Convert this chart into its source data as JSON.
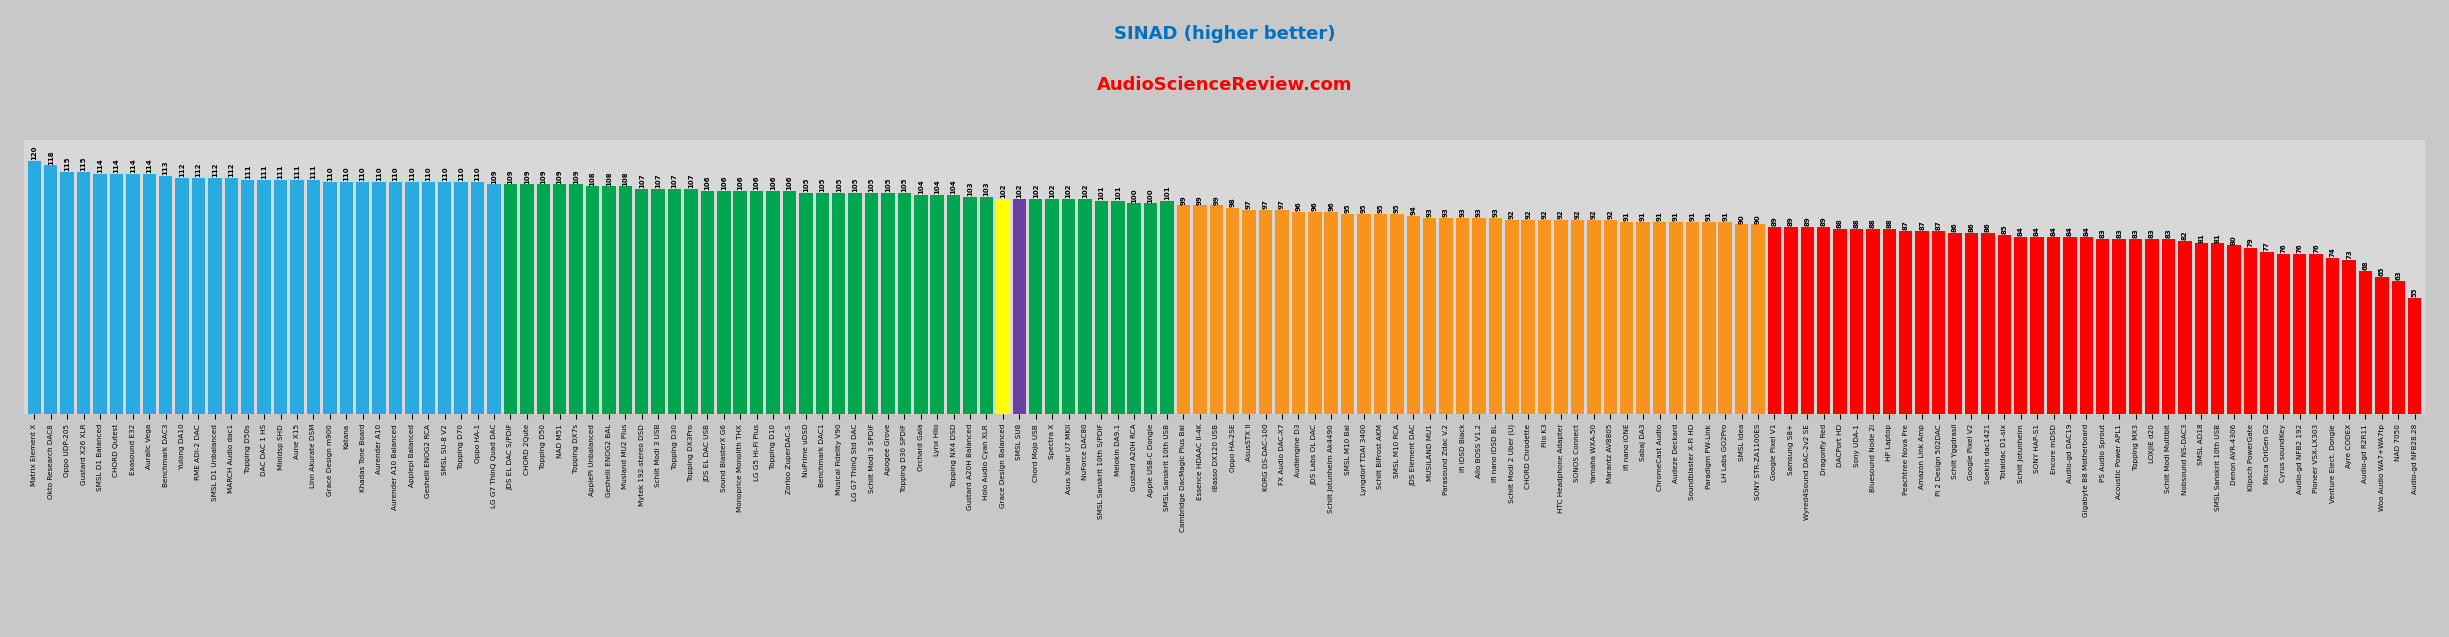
{
  "title": "SINAD (higher better)",
  "subtitle": "AudioScienceReview.com",
  "title_color": "#0070C0",
  "subtitle_color": "#FF0000",
  "bars": [
    {
      "label": "Matrix Element X",
      "value": 120,
      "color": "#29ABE2"
    },
    {
      "label": "Okto Research DAC8",
      "value": 118,
      "color": "#29ABE2"
    },
    {
      "label": "Oppo UDP-205",
      "value": 115,
      "color": "#29ABE2"
    },
    {
      "label": "Gustard X26 XLR",
      "value": 115,
      "color": "#29ABE2"
    },
    {
      "label": "SMSL D1 Balanced",
      "value": 114,
      "color": "#29ABE2"
    },
    {
      "label": "CHORD Qutest",
      "value": 114,
      "color": "#29ABE2"
    },
    {
      "label": "Exasound E32",
      "value": 114,
      "color": "#29ABE2"
    },
    {
      "label": "Auralic Vega",
      "value": 114,
      "color": "#29ABE2"
    },
    {
      "label": "Benchmark DAC3",
      "value": 113,
      "color": "#29ABE2"
    },
    {
      "label": "Yulong DA10",
      "value": 112,
      "color": "#29ABE2"
    },
    {
      "label": "RME ADI-2 DAC",
      "value": 112,
      "color": "#29ABE2"
    },
    {
      "label": "SMSL D1 Unbalanced",
      "value": 112,
      "color": "#29ABE2"
    },
    {
      "label": "MARCH Audio dac1",
      "value": 112,
      "color": "#29ABE2"
    },
    {
      "label": "Topping D50s",
      "value": 111,
      "color": "#29ABE2"
    },
    {
      "label": "DAC DAC 1 HS",
      "value": 111,
      "color": "#29ABE2"
    },
    {
      "label": "Minidsp SHD",
      "value": 111,
      "color": "#29ABE2"
    },
    {
      "label": "Aune X15",
      "value": 111,
      "color": "#29ABE2"
    },
    {
      "label": "Linn Akurate DSM",
      "value": 111,
      "color": "#29ABE2"
    },
    {
      "label": "Grace Design m900",
      "value": 110,
      "color": "#29ABE2"
    },
    {
      "label": "Katana",
      "value": 110,
      "color": "#29ABE2"
    },
    {
      "label": "Khadas Tone Board",
      "value": 110,
      "color": "#29ABE2"
    },
    {
      "label": "Aurender A10",
      "value": 110,
      "color": "#29ABE2"
    },
    {
      "label": "Aurender A10 Balanced",
      "value": 110,
      "color": "#29ABE2"
    },
    {
      "label": "Applepi Balanced",
      "value": 110,
      "color": "#29ABE2"
    },
    {
      "label": "Geshelli ENOG2 RCA",
      "value": 110,
      "color": "#29ABE2"
    },
    {
      "label": "SMSL SU-8 V2",
      "value": 110,
      "color": "#29ABE2"
    },
    {
      "label": "Topping D70",
      "value": 110,
      "color": "#29ABE2"
    },
    {
      "label": "Oppo HA-1",
      "value": 110,
      "color": "#29ABE2"
    },
    {
      "label": "LG G7 ThinQ Quad DAC",
      "value": 109,
      "color": "#29ABE2"
    },
    {
      "label": "JDS EL DAC S/PDIF",
      "value": 109,
      "color": "#00A550"
    },
    {
      "label": "CHORD 2Qute",
      "value": 109,
      "color": "#00A550"
    },
    {
      "label": "Topping D50",
      "value": 109,
      "color": "#00A550"
    },
    {
      "label": "NAD M51",
      "value": 109,
      "color": "#00A550"
    },
    {
      "label": "Topping DX7s",
      "value": 109,
      "color": "#00A550"
    },
    {
      "label": "ApplePi Unbalanced",
      "value": 108,
      "color": "#00A550"
    },
    {
      "label": "Geshelli ENOG2 BAL",
      "value": 108,
      "color": "#00A550"
    },
    {
      "label": "Musland MU2 Plus",
      "value": 108,
      "color": "#00A550"
    },
    {
      "label": "Mytek 192-stereo DSD",
      "value": 107,
      "color": "#00A550"
    },
    {
      "label": "Schiit Modi 3 USB",
      "value": 107,
      "color": "#00A550"
    },
    {
      "label": "Topping D30",
      "value": 107,
      "color": "#00A550"
    },
    {
      "label": "Topping DX3Pro",
      "value": 107,
      "color": "#00A550"
    },
    {
      "label": "JDS EL DAC USB",
      "value": 106,
      "color": "#00A550"
    },
    {
      "label": "Sound BlasterX G6",
      "value": 106,
      "color": "#00A550"
    },
    {
      "label": "Monoprice Monolith THX",
      "value": 106,
      "color": "#00A550"
    },
    {
      "label": "LG G5 Hi-Fi Plus",
      "value": 106,
      "color": "#00A550"
    },
    {
      "label": "Topping D10",
      "value": 106,
      "color": "#00A550"
    },
    {
      "label": "Zorloo ZuperDAC-S",
      "value": 106,
      "color": "#00A550"
    },
    {
      "label": "NuPrime uDSD",
      "value": 105,
      "color": "#00A550"
    },
    {
      "label": "Benchmark DAC1",
      "value": 105,
      "color": "#00A550"
    },
    {
      "label": "Musical Fidelity V90",
      "value": 105,
      "color": "#00A550"
    },
    {
      "label": "LG G7 ThinQ Std DAC",
      "value": 105,
      "color": "#00A550"
    },
    {
      "label": "Schiit Modi 3 SPDIF",
      "value": 105,
      "color": "#00A550"
    },
    {
      "label": "Apogee Grove",
      "value": 105,
      "color": "#00A550"
    },
    {
      "label": "Topping D30 SPDIF",
      "value": 105,
      "color": "#00A550"
    },
    {
      "label": "Orchard Gala",
      "value": 104,
      "color": "#00A550"
    },
    {
      "label": "Lynx Hilo",
      "value": 104,
      "color": "#00A550"
    },
    {
      "label": "Topping NX4 DSD",
      "value": 104,
      "color": "#00A550"
    },
    {
      "label": "Gustard A20H Balanced",
      "value": 103,
      "color": "#00A550"
    },
    {
      "label": "Holo Audio Cyan XLR",
      "value": 103,
      "color": "#00A550"
    },
    {
      "label": "Grace Design Balanced",
      "value": 102,
      "color": "#FFFF00"
    },
    {
      "label": "SMSL SU8",
      "value": 102,
      "color": "#6B3FA0"
    },
    {
      "label": "Chord Mojo USB",
      "value": 102,
      "color": "#00A550"
    },
    {
      "label": "Spectra X",
      "value": 102,
      "color": "#00A550"
    },
    {
      "label": "Asus Xonar U7 MKII",
      "value": 102,
      "color": "#00A550"
    },
    {
      "label": "NuForce DAC80",
      "value": 102,
      "color": "#00A550"
    },
    {
      "label": "SMSL Sanskrit 10th S/PDIF",
      "value": 101,
      "color": "#00A550"
    },
    {
      "label": "Melokin DA9.1",
      "value": 101,
      "color": "#00A550"
    },
    {
      "label": "Gustard A20H RCA",
      "value": 100,
      "color": "#00A550"
    },
    {
      "label": "Apple USB-C Dongle",
      "value": 100,
      "color": "#00A550"
    },
    {
      "label": "SMSL Sanskrit 10th USB",
      "value": 101,
      "color": "#00A550"
    },
    {
      "label": "Cambridge DacMagic Plus Bal",
      "value": 99,
      "color": "#F7941D"
    },
    {
      "label": "Essence HDAAC II-4K",
      "value": 99,
      "color": "#F7941D"
    },
    {
      "label": "iBasso DX120 USB",
      "value": 99,
      "color": "#F7941D"
    },
    {
      "label": "Oppo HA-2SE",
      "value": 98,
      "color": "#F7941D"
    },
    {
      "label": "AsusSTX II",
      "value": 97,
      "color": "#F7941D"
    },
    {
      "label": "KORG DS-DAC-100",
      "value": 97,
      "color": "#F7941D"
    },
    {
      "label": "FX Audio DAC-X7",
      "value": 97,
      "color": "#F7941D"
    },
    {
      "label": "Audiengine D3",
      "value": 96,
      "color": "#F7941D"
    },
    {
      "label": "JDS Labs OL DAC",
      "value": 96,
      "color": "#F7941D"
    },
    {
      "label": "Schiit Jotunheim Ak4490",
      "value": 96,
      "color": "#F7941D"
    },
    {
      "label": "SMSL M10 Bal",
      "value": 95,
      "color": "#F7941D"
    },
    {
      "label": "Lyngdorf TDAI 3400",
      "value": 95,
      "color": "#F7941D"
    },
    {
      "label": "Schiit BiFrost AKM",
      "value": 95,
      "color": "#F7941D"
    },
    {
      "label": "SMSL M10 RCA",
      "value": 95,
      "color": "#F7941D"
    },
    {
      "label": "JDS Element DAC",
      "value": 94,
      "color": "#F7941D"
    },
    {
      "label": "MUSILAND MU1",
      "value": 93,
      "color": "#F7941D"
    },
    {
      "label": "Parasound Zdac V.2",
      "value": 93,
      "color": "#F7941D"
    },
    {
      "label": "ifi iDSD Black",
      "value": 93,
      "color": "#F7941D"
    },
    {
      "label": "Allo BOSS V1.2",
      "value": 93,
      "color": "#F7941D"
    },
    {
      "label": "ifi nano iDSD BL",
      "value": 93,
      "color": "#F7941D"
    },
    {
      "label": "Schiit Modi 2 Uber (U)",
      "value": 92,
      "color": "#F7941D"
    },
    {
      "label": "CHORD Chrodette",
      "value": 92,
      "color": "#F7941D"
    },
    {
      "label": "Fiio K3",
      "value": 92,
      "color": "#F7941D"
    },
    {
      "label": "HTC Headphone Adapter",
      "value": 92,
      "color": "#F7941D"
    },
    {
      "label": "SONOS Connect",
      "value": 92,
      "color": "#F7941D"
    },
    {
      "label": "Yamaha WXA-50",
      "value": 92,
      "color": "#F7941D"
    },
    {
      "label": "Marantz AV8805",
      "value": 92,
      "color": "#F7941D"
    },
    {
      "label": "ifi nano iONE",
      "value": 91,
      "color": "#F7941D"
    },
    {
      "label": "Sabaj DA3",
      "value": 91,
      "color": "#F7941D"
    },
    {
      "label": "ChromeCast Audio",
      "value": 91,
      "color": "#F7941D"
    },
    {
      "label": "Audeze Deckard",
      "value": 91,
      "color": "#F7941D"
    },
    {
      "label": "Soundblaster X-Fi HD",
      "value": 91,
      "color": "#F7941D"
    },
    {
      "label": "Paradigm PW-Link",
      "value": 91,
      "color": "#F7941D"
    },
    {
      "label": "LH Labs GO2Pro",
      "value": 91,
      "color": "#F7941D"
    },
    {
      "label": "SMSL Idea",
      "value": 90,
      "color": "#F7941D"
    },
    {
      "label": "SONY STR-ZA1100ES",
      "value": 90,
      "color": "#F7941D"
    },
    {
      "label": "Google Pixel V1",
      "value": 89,
      "color": "#FF0000"
    },
    {
      "label": "Samsung S8+",
      "value": 89,
      "color": "#FF0000"
    },
    {
      "label": "Wyred4Sound DAC-2v2 SE",
      "value": 89,
      "color": "#FF0000"
    },
    {
      "label": "Dragonfly Red",
      "value": 89,
      "color": "#FF0000"
    },
    {
      "label": "DACPort HD",
      "value": 88,
      "color": "#FF0000"
    },
    {
      "label": "Sony UDA-1",
      "value": 88,
      "color": "#FF0000"
    },
    {
      "label": "Bluesound Node 2i",
      "value": 88,
      "color": "#FF0000"
    },
    {
      "label": "HP Laptop",
      "value": 88,
      "color": "#FF0000"
    },
    {
      "label": "Peachtree Nova Pre",
      "value": 87,
      "color": "#FF0000"
    },
    {
      "label": "Amazon Link Amp",
      "value": 87,
      "color": "#FF0000"
    },
    {
      "label": "Pi 2 Design 502DAC",
      "value": 87,
      "color": "#FF0000"
    },
    {
      "label": "Schiit Yggdrasil",
      "value": 86,
      "color": "#FF0000"
    },
    {
      "label": "Google Pixel V2",
      "value": 86,
      "color": "#FF0000"
    },
    {
      "label": "Soekris dac1421",
      "value": 86,
      "color": "#FF0000"
    },
    {
      "label": "Totaldac D1-six",
      "value": 85,
      "color": "#FF0000"
    },
    {
      "label": "Schiit Jotunheim",
      "value": 84,
      "color": "#FF0000"
    },
    {
      "label": "SONY HAP-S1",
      "value": 84,
      "color": "#FF0000"
    },
    {
      "label": "Encore mDSD",
      "value": 84,
      "color": "#FF0000"
    },
    {
      "label": "Audio-gd DAC19",
      "value": 84,
      "color": "#FF0000"
    },
    {
      "label": "Gigabyte B8 Motherboard",
      "value": 84,
      "color": "#FF0000"
    },
    {
      "label": "PS Audio Sprout",
      "value": 83,
      "color": "#FF0000"
    },
    {
      "label": "Acoustic Power APL1",
      "value": 83,
      "color": "#FF0000"
    },
    {
      "label": "Topping MX3",
      "value": 83,
      "color": "#FF0000"
    },
    {
      "label": "LOXJIE d20",
      "value": 83,
      "color": "#FF0000"
    },
    {
      "label": "Schiit Modi Multibit",
      "value": 83,
      "color": "#FF0000"
    },
    {
      "label": "Nobsound NS-DAC3",
      "value": 82,
      "color": "#FF0000"
    },
    {
      "label": "SMSL AD18",
      "value": 81,
      "color": "#FF0000"
    },
    {
      "label": "SMSL Sanskrit 10th USB",
      "value": 81,
      "color": "#FF0000"
    },
    {
      "label": "Denon AVR-4306",
      "value": 80,
      "color": "#FF0000"
    },
    {
      "label": "Klipsch PowerGate",
      "value": 79,
      "color": "#FF0000"
    },
    {
      "label": "Micca OriGen G2",
      "value": 77,
      "color": "#FF0000"
    },
    {
      "label": "Cyrus soundKey",
      "value": 76,
      "color": "#FF0000"
    },
    {
      "label": "Audio-gd NFB2 192",
      "value": 76,
      "color": "#FF0000"
    },
    {
      "label": "Pioneer VSX-LX303",
      "value": 76,
      "color": "#FF0000"
    },
    {
      "label": "Venture Elect. Dongle",
      "value": 74,
      "color": "#FF0000"
    },
    {
      "label": "Ayre CODEX",
      "value": 73,
      "color": "#FF0000"
    },
    {
      "label": "Audio-gd R2R11",
      "value": 68,
      "color": "#FF0000"
    },
    {
      "label": "Woo Audio WA7+WA7tp",
      "value": 65,
      "color": "#FF0000"
    },
    {
      "label": "NAD 7050",
      "value": 63,
      "color": "#FF0000"
    },
    {
      "label": "Audio-gd NFB28.28",
      "value": 55,
      "color": "#FF0000"
    }
  ],
  "ylim_max": 130,
  "value_label_fontsize": 5,
  "tick_fontsize": 5.2
}
